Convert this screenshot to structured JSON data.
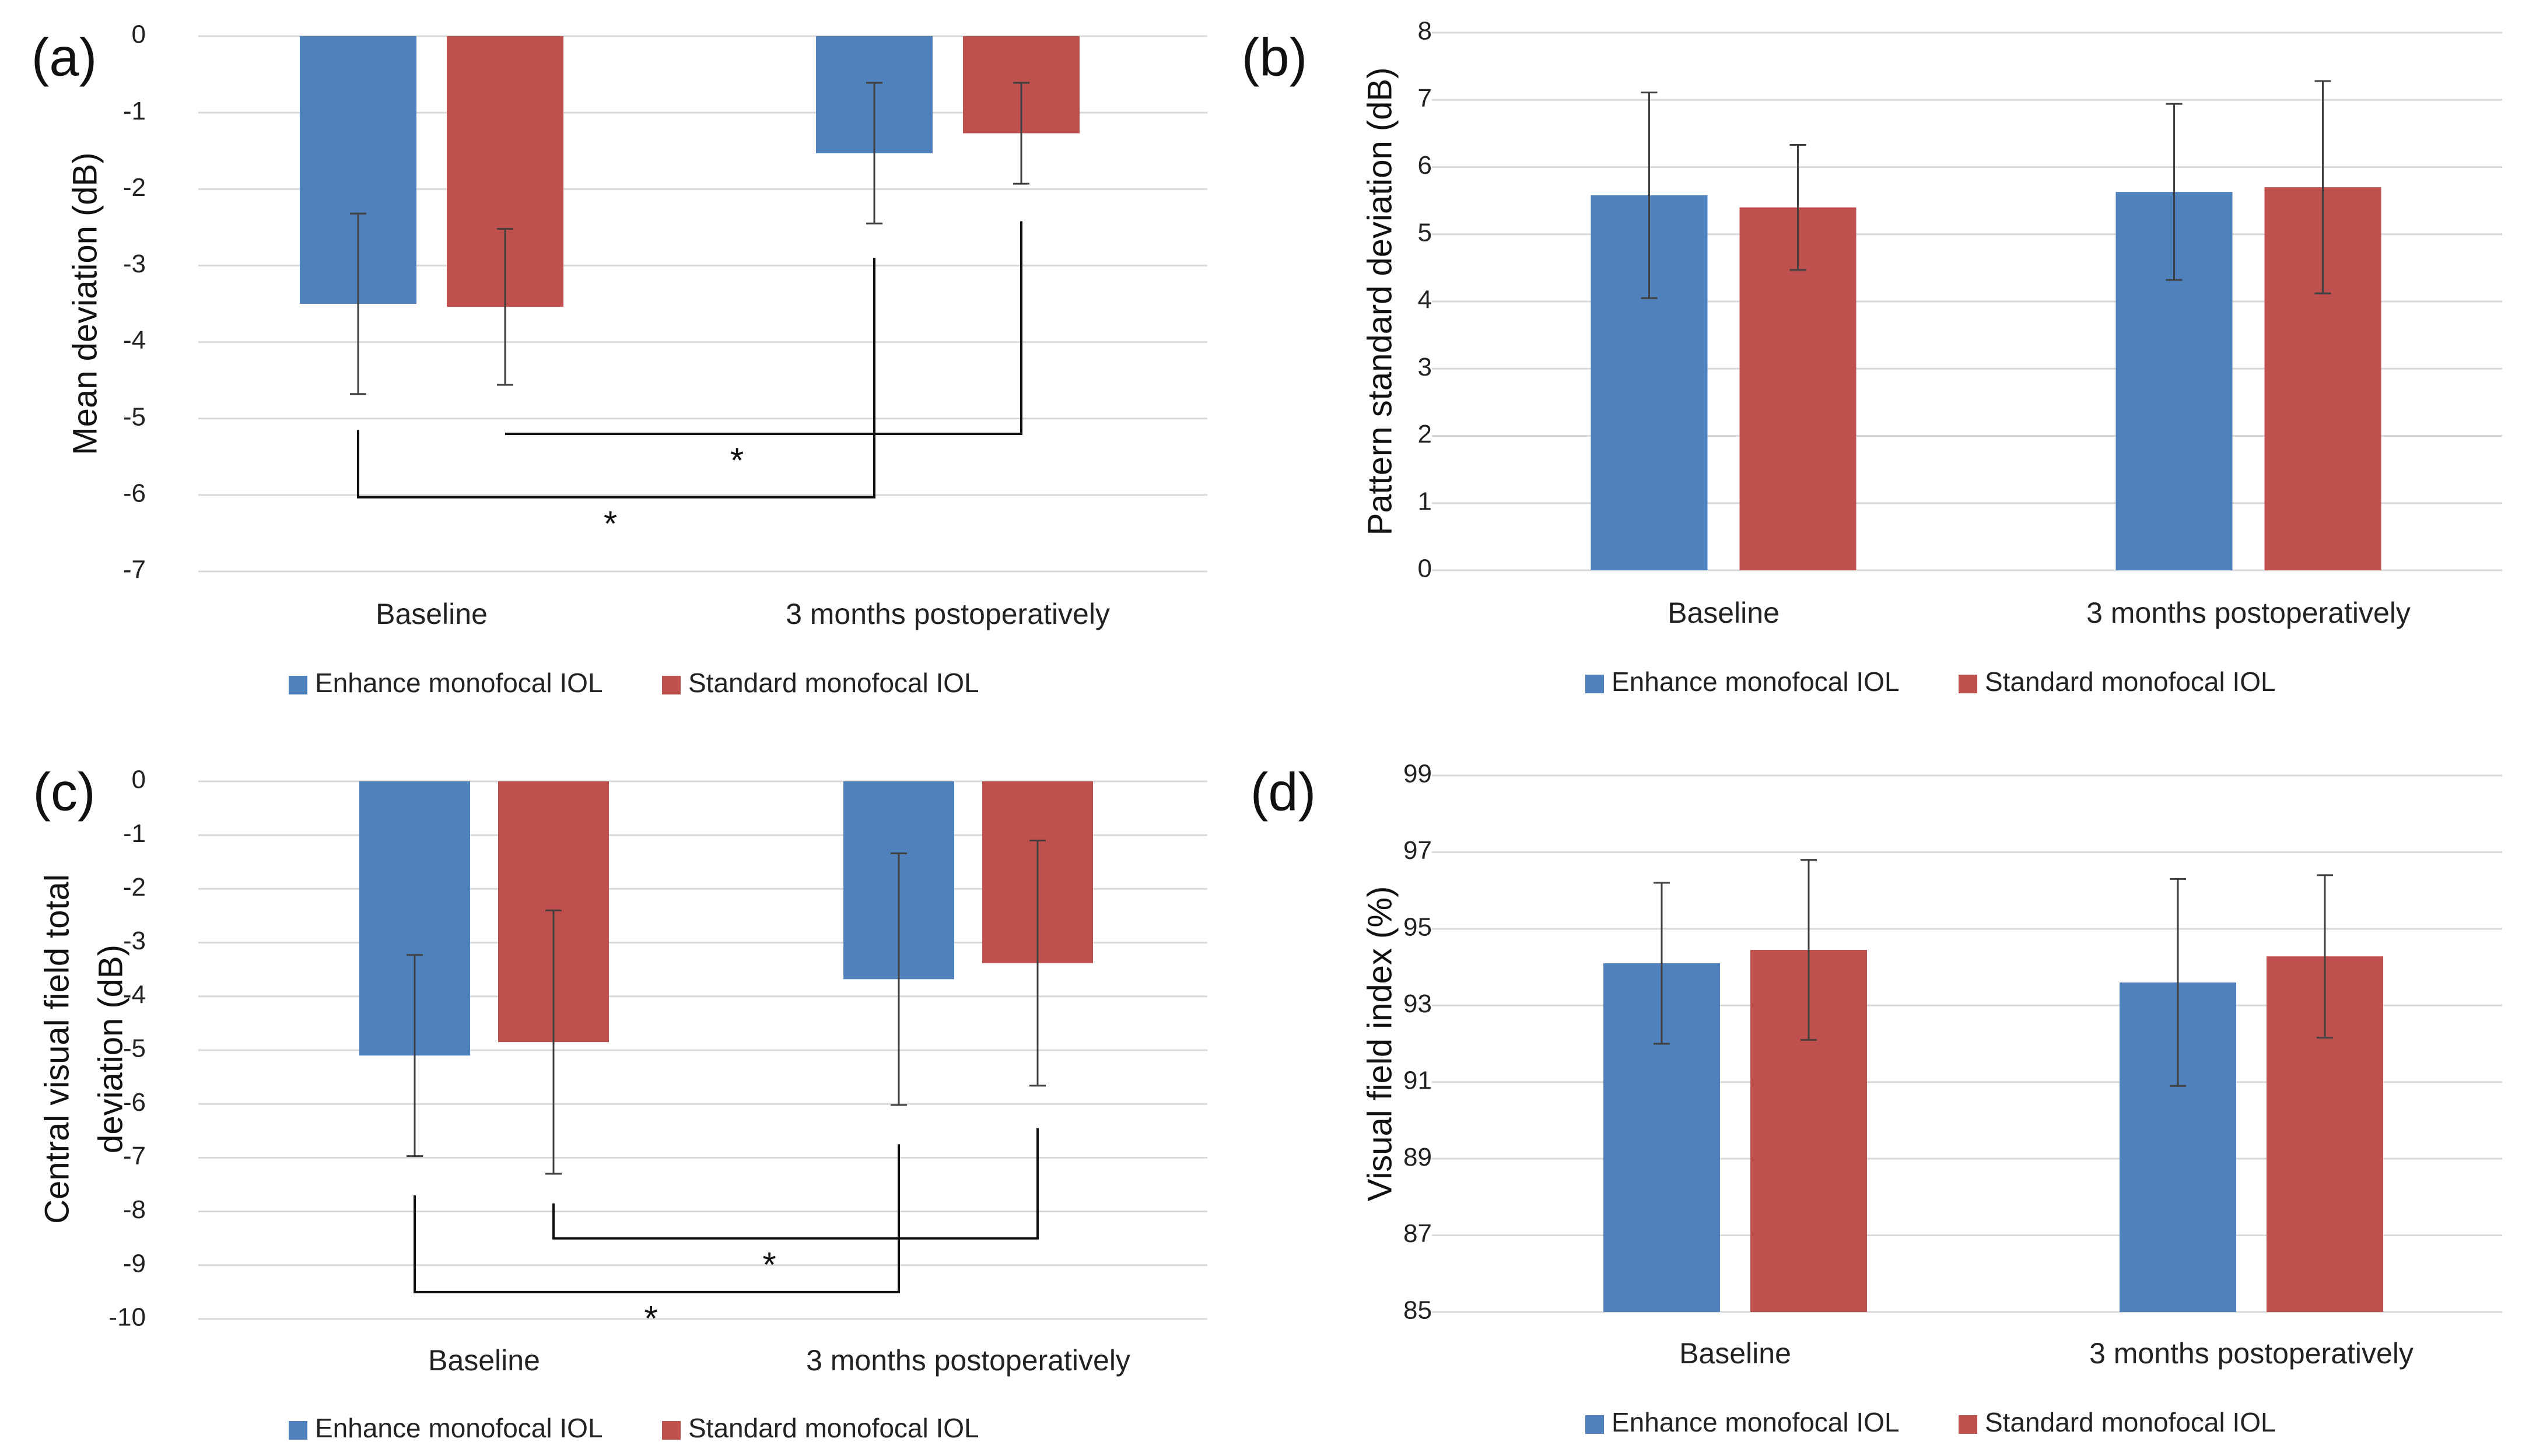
{
  "chart_data": [
    {
      "panel_label": "(a)",
      "type": "bar",
      "ylabel": [
        "Mean deviation (dB)"
      ],
      "ylim": [
        -7,
        0
      ],
      "ytick_step": 1,
      "yticks": [
        "0",
        "-1",
        "-2",
        "-3",
        "-4",
        "-5",
        "-6",
        "-7"
      ],
      "categories": [
        "Baseline",
        "3 months postoperatively"
      ],
      "grid": true,
      "legend_position": "bottom",
      "series": [
        {
          "name": "Enhance monofocal IOL",
          "values": [
            -3.5,
            -1.53
          ],
          "error": [
            1.18,
            0.92
          ]
        },
        {
          "name": "Standard monofocal IOL",
          "values": [
            -3.54,
            -1.27
          ],
          "error": [
            1.02,
            0.66
          ]
        }
      ],
      "significance": [
        {
          "series": 0,
          "from_y": -5.15,
          "to_y": -2.9,
          "bar_y": -6.03,
          "label": "*"
        },
        {
          "series": 1,
          "from_y": -5.2,
          "to_y": -2.42,
          "bar_y": -5.2,
          "label": "*"
        }
      ]
    },
    {
      "panel_label": "(b)",
      "type": "bar",
      "ylabel": [
        "Pattern standard deviation (dB)"
      ],
      "ylim": [
        0,
        8
      ],
      "ytick_step": 1,
      "yticks": [
        "8",
        "7",
        "6",
        "5",
        "4",
        "3",
        "2",
        "1",
        "0"
      ],
      "categories": [
        "Baseline",
        "3 months postoperatively"
      ],
      "grid": true,
      "legend_position": "bottom",
      "series": [
        {
          "name": "Enhance monofocal IOL",
          "values": [
            5.58,
            5.63
          ],
          "error": [
            1.53,
            1.31
          ]
        },
        {
          "name": "Standard monofocal IOL",
          "values": [
            5.4,
            5.7
          ],
          "error": [
            0.93,
            1.58
          ]
        }
      ],
      "significance": []
    },
    {
      "panel_label": "(c)",
      "type": "bar",
      "ylabel": [
        "Central visual field total",
        "deviation (dB)"
      ],
      "ylim": [
        -10,
        0
      ],
      "ytick_step": 1,
      "yticks": [
        "0",
        "-1",
        "-2",
        "-3",
        "-4",
        "-5",
        "-6",
        "-7",
        "-8",
        "-9",
        "-10"
      ],
      "categories": [
        "Baseline",
        "3 months postoperatively"
      ],
      "grid": true,
      "legend_position": "bottom",
      "series": [
        {
          "name": "Enhance monofocal IOL",
          "values": [
            -5.1,
            -3.68
          ],
          "error": [
            1.87,
            2.34
          ]
        },
        {
          "name": "Standard monofocal IOL",
          "values": [
            -4.85,
            -3.38
          ],
          "error": [
            2.45,
            2.28
          ]
        }
      ],
      "significance": [
        {
          "series": 0,
          "from_y": -7.7,
          "to_y": -6.75,
          "bar_y": -9.5,
          "label": "*"
        },
        {
          "series": 1,
          "from_y": -7.85,
          "to_y": -6.45,
          "bar_y": -8.5,
          "label": "*"
        }
      ]
    },
    {
      "panel_label": "(d)",
      "type": "bar",
      "ylabel": [
        "Visual field index (%)"
      ],
      "ylim": [
        85,
        99
      ],
      "ytick_step": 2,
      "yticks": [
        "99",
        "97",
        "95",
        "93",
        "91",
        "89",
        "87",
        "85"
      ],
      "categories": [
        "Baseline",
        "3 months postoperatively"
      ],
      "grid": true,
      "legend_position": "bottom",
      "series": [
        {
          "name": "Enhance monofocal IOL",
          "values": [
            94.1,
            93.6
          ],
          "error": [
            2.1,
            2.7
          ]
        },
        {
          "name": "Standard monofocal IOL",
          "values": [
            94.45,
            94.28
          ],
          "error": [
            2.35,
            2.12
          ]
        }
      ],
      "significance": []
    }
  ],
  "colors": {
    "enhance": "#4F81BD",
    "standard": "#C0504D",
    "grid": "#D9D9D9",
    "error_bar": "#404040",
    "bracket": "#111111"
  }
}
